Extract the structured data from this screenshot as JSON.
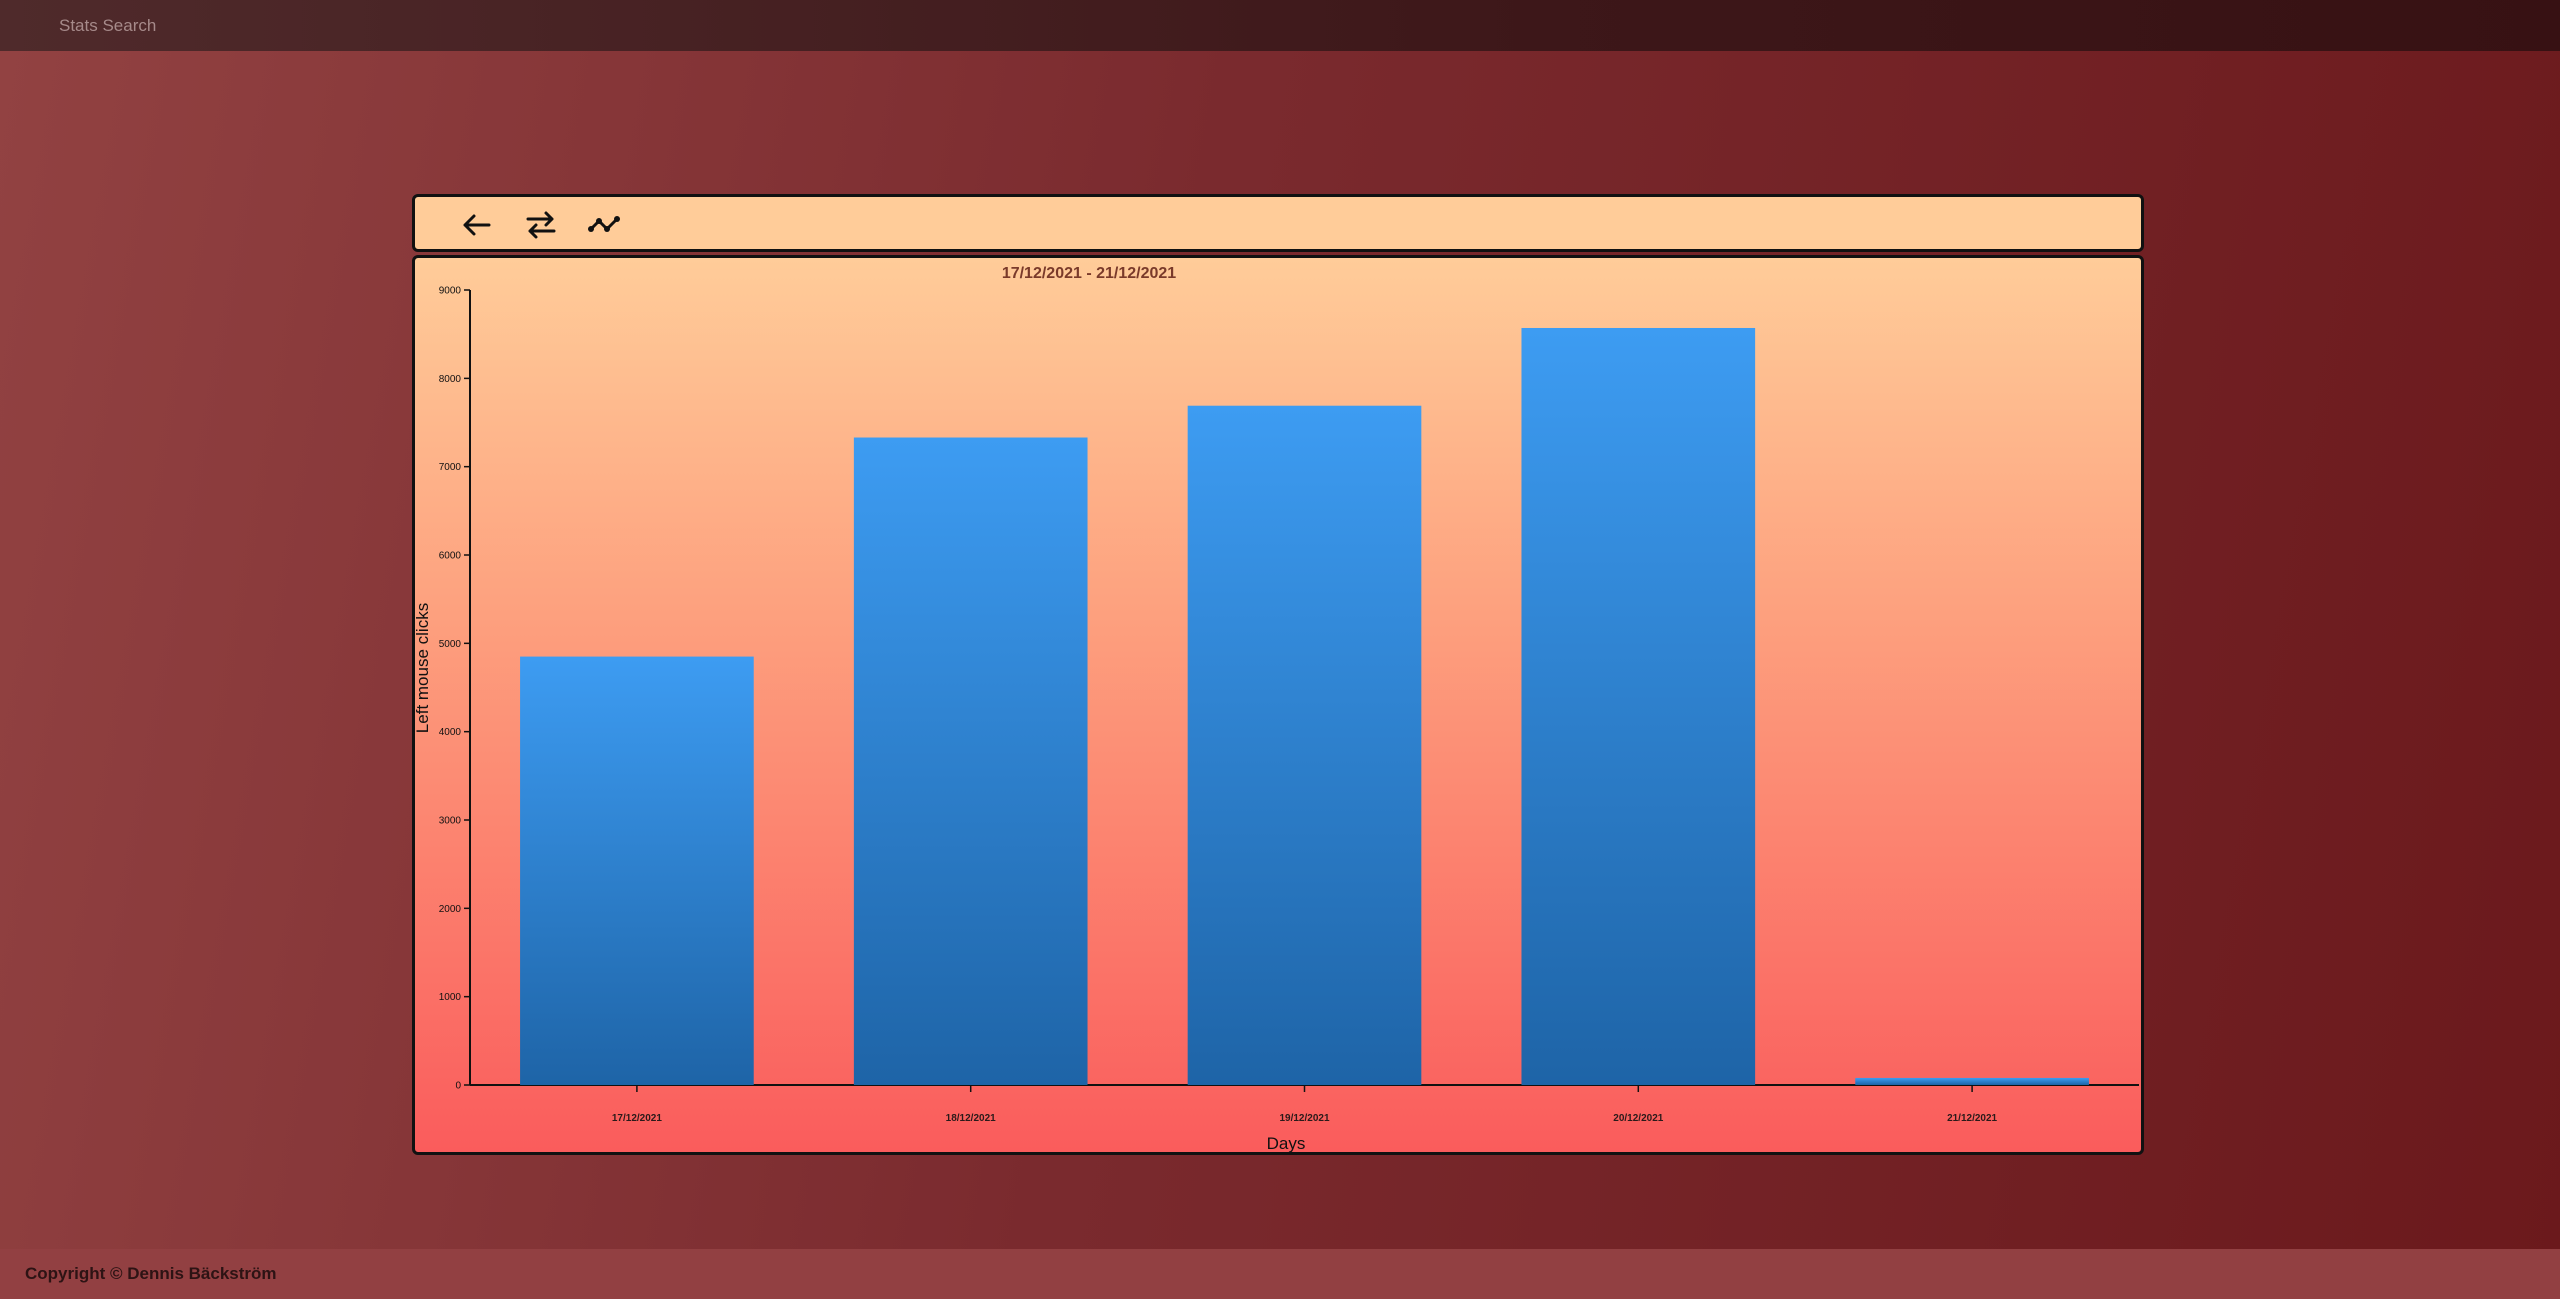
{
  "header": {
    "brand": "Stats Search"
  },
  "toolbar": {
    "buttons": [
      {
        "icon": "arrow-left-icon",
        "name": "back-button"
      },
      {
        "icon": "swap-arrows-icon",
        "name": "swap-button"
      },
      {
        "icon": "line-chart-icon",
        "name": "chart-type-button"
      }
    ]
  },
  "chart_data": {
    "type": "bar",
    "title": "17/12/2021 - 21/12/2021",
    "xlabel": "Days",
    "ylabel": "Left mouse clicks",
    "categories": [
      "17/12/2021",
      "18/12/2021",
      "19/12/2021",
      "20/12/2021",
      "21/12/2021"
    ],
    "values": [
      4850,
      7330,
      7690,
      8570,
      80
    ],
    "ylim": [
      0,
      9000
    ],
    "yticks": [
      0,
      1000,
      2000,
      3000,
      4000,
      5000,
      6000,
      7000,
      8000,
      9000
    ],
    "grid": false,
    "legend": "none",
    "colors": {
      "bar_top": "#3d9cf2",
      "bar_bottom": "#1e64a7",
      "axis": "#111111",
      "title": "#7a3a2a"
    }
  },
  "footer": {
    "copyright": "Copyright © Dennis Bäckström"
  }
}
